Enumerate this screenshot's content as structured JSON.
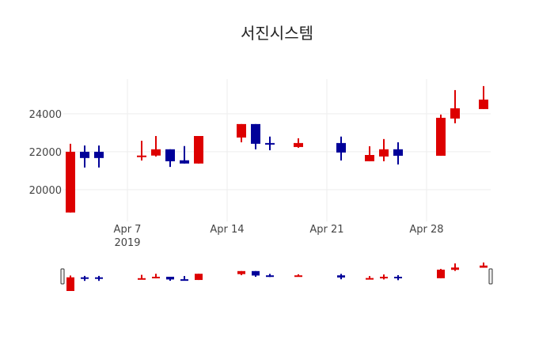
{
  "chart_data": {
    "type": "candlestick",
    "title": "서진시스템",
    "xlabel": "",
    "ylabel": "",
    "ylim": [
      18330,
      25830
    ],
    "xlim": [
      "2019-04-02T12:00",
      "2019-05-02T12:00"
    ],
    "yticks": [
      20000,
      22000,
      24000
    ],
    "ytick_labels": [
      "20000",
      "22000",
      "24000"
    ],
    "xticks": [
      "2019-04-07",
      "2019-04-14",
      "2019-04-21",
      "2019-04-28"
    ],
    "xtick_labels": [
      "Apr 7",
      "Apr 14",
      "Apr 21",
      "Apr 28"
    ],
    "xtick_year_label": "2019",
    "grid": true,
    "increasing_color": "#dd0000",
    "decreasing_color": "#000099",
    "rangeslider": true,
    "candles": [
      {
        "date": "2019-04-03",
        "open": 18800,
        "high": 22420,
        "low": 18800,
        "close": 22000
      },
      {
        "date": "2019-04-04",
        "open": 22000,
        "high": 22330,
        "low": 21170,
        "close": 21670
      },
      {
        "date": "2019-04-05",
        "open": 22000,
        "high": 22330,
        "low": 21170,
        "close": 21670
      },
      {
        "date": "2019-04-08",
        "open": 21750,
        "high": 22580,
        "low": 21540,
        "close": 21800
      },
      {
        "date": "2019-04-09",
        "open": 21800,
        "high": 22830,
        "low": 21750,
        "close": 22130
      },
      {
        "date": "2019-04-10",
        "open": 22130,
        "high": 22130,
        "low": 21200,
        "close": 21500
      },
      {
        "date": "2019-04-11",
        "open": 21550,
        "high": 22300,
        "low": 21380,
        "close": 21380
      },
      {
        "date": "2019-04-12",
        "open": 21380,
        "high": 22830,
        "low": 21380,
        "close": 22830
      },
      {
        "date": "2019-04-15",
        "open": 22750,
        "high": 23460,
        "low": 22500,
        "close": 23460
      },
      {
        "date": "2019-04-16",
        "open": 23460,
        "high": 23460,
        "low": 22130,
        "close": 22420
      },
      {
        "date": "2019-04-17",
        "open": 22460,
        "high": 22800,
        "low": 22080,
        "close": 22420
      },
      {
        "date": "2019-04-19",
        "open": 22250,
        "high": 22710,
        "low": 22210,
        "close": 22460
      },
      {
        "date": "2019-04-22",
        "open": 22460,
        "high": 22800,
        "low": 21540,
        "close": 21960
      },
      {
        "date": "2019-04-24",
        "open": 21500,
        "high": 22290,
        "low": 21500,
        "close": 21830
      },
      {
        "date": "2019-04-25",
        "open": 21750,
        "high": 22670,
        "low": 21500,
        "close": 22130
      },
      {
        "date": "2019-04-26",
        "open": 22130,
        "high": 22500,
        "low": 21330,
        "close": 21790
      },
      {
        "date": "2019-04-29",
        "open": 21790,
        "high": 23960,
        "low": 21790,
        "close": 23790
      },
      {
        "date": "2019-04-30",
        "open": 23750,
        "high": 25250,
        "low": 23500,
        "close": 24290
      },
      {
        "date": "2019-05-02",
        "open": 24250,
        "high": 25460,
        "low": 24250,
        "close": 24750
      }
    ]
  }
}
